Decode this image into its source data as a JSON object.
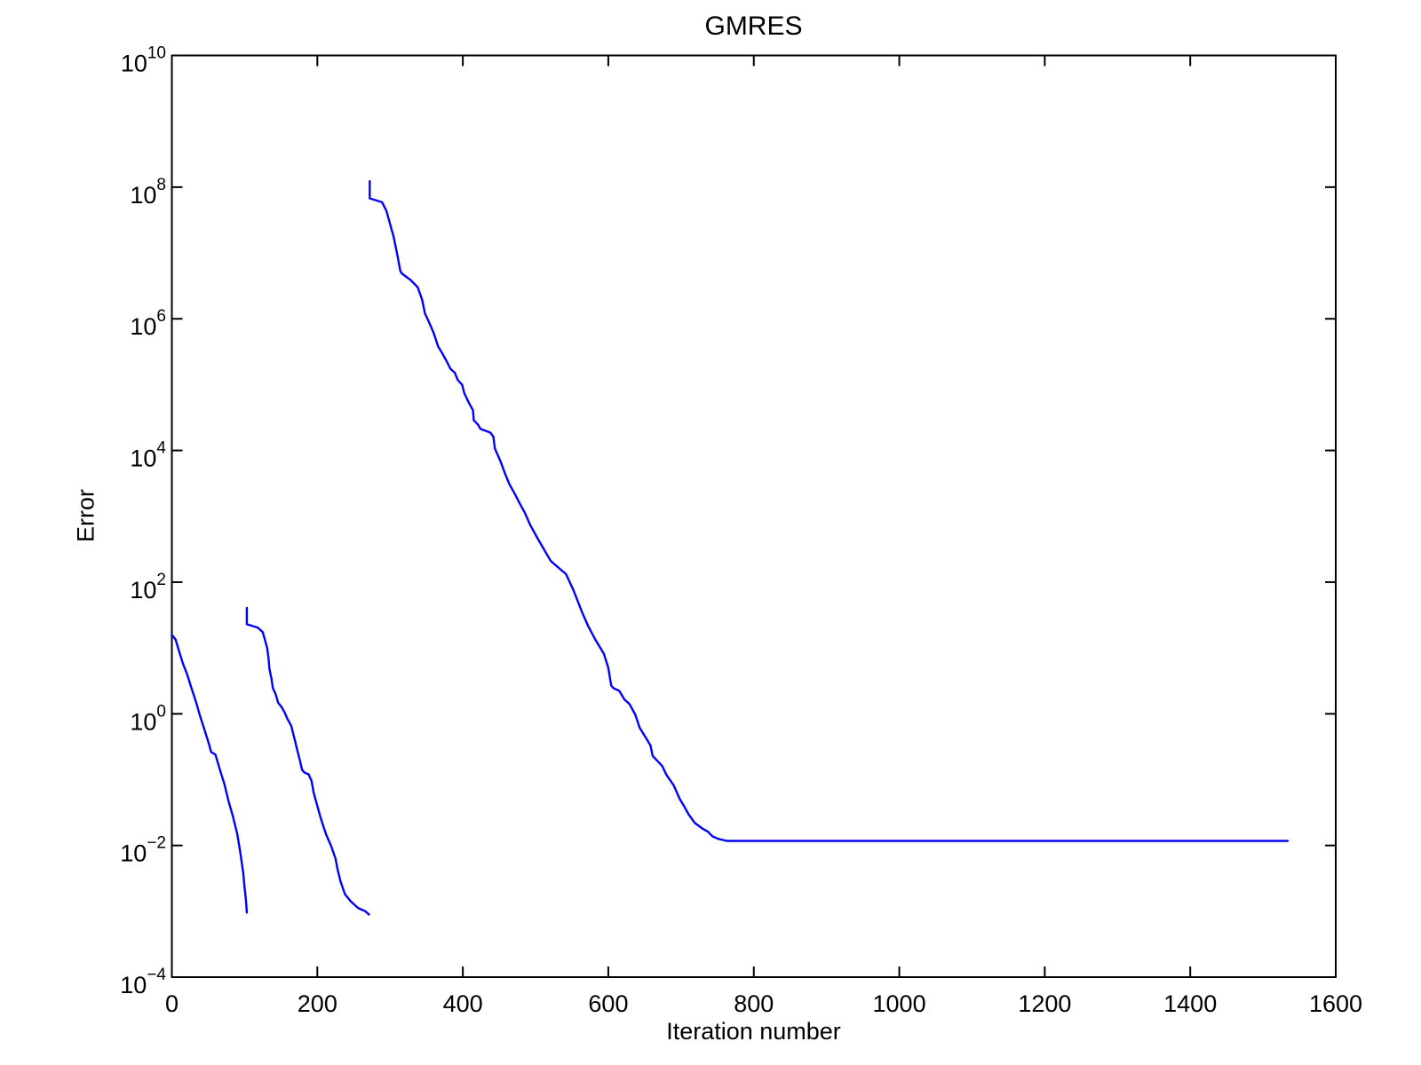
{
  "chart_data": {
    "type": "line",
    "title": "GMRES",
    "xlabel": "Iteration number",
    "ylabel": "Error",
    "x_ticks": [
      0,
      200,
      400,
      600,
      800,
      1000,
      1200,
      1400,
      1600
    ],
    "y_tick_exponents": [
      10,
      8,
      6,
      4,
      2,
      0,
      -2,
      -4
    ],
    "xlim": [
      0,
      1600
    ],
    "ylim_log10": [
      -4,
      10
    ],
    "y_scale": "log",
    "grid": false,
    "legend": null,
    "colors": {
      "line": "#0000ff",
      "axis": "#000000",
      "background": "#ffffff"
    },
    "series": [
      {
        "id": "segment-1",
        "points_iter_log10error": [
          [
            0,
            1.2
          ],
          [
            5,
            1.13
          ],
          [
            15,
            0.77
          ],
          [
            21,
            0.6
          ],
          [
            27,
            0.39
          ],
          [
            33,
            0.19
          ],
          [
            39,
            -0.04
          ],
          [
            45,
            -0.25
          ],
          [
            51,
            -0.46
          ],
          [
            54,
            -0.58
          ],
          [
            60,
            -0.62
          ],
          [
            66,
            -0.85
          ],
          [
            72,
            -1.06
          ],
          [
            78,
            -1.33
          ],
          [
            84,
            -1.56
          ],
          [
            90,
            -1.83
          ],
          [
            94,
            -2.1
          ],
          [
            98,
            -2.41
          ],
          [
            100,
            -2.64
          ],
          [
            102,
            -2.84
          ],
          [
            103,
            -3.02
          ]
        ]
      },
      {
        "id": "segment-2",
        "points_iter_log10error": [
          [
            103,
            1.61
          ],
          [
            103,
            1.36
          ],
          [
            118,
            1.31
          ],
          [
            125,
            1.24
          ],
          [
            131,
            1.0
          ],
          [
            133,
            0.84
          ],
          [
            134,
            0.69
          ],
          [
            137,
            0.53
          ],
          [
            139,
            0.39
          ],
          [
            143,
            0.29
          ],
          [
            146,
            0.17
          ],
          [
            151,
            0.1
          ],
          [
            155,
            0.02
          ],
          [
            159,
            -0.08
          ],
          [
            164,
            -0.18
          ],
          [
            167,
            -0.31
          ],
          [
            170,
            -0.44
          ],
          [
            173,
            -0.58
          ],
          [
            176,
            -0.71
          ],
          [
            179,
            -0.85
          ],
          [
            182,
            -0.89
          ],
          [
            188,
            -0.92
          ],
          [
            192,
            -1.02
          ],
          [
            195,
            -1.2
          ],
          [
            200,
            -1.4
          ],
          [
            204,
            -1.56
          ],
          [
            208,
            -1.7
          ],
          [
            212,
            -1.83
          ],
          [
            219,
            -2.01
          ],
          [
            225,
            -2.2
          ],
          [
            228,
            -2.37
          ],
          [
            232,
            -2.55
          ],
          [
            238,
            -2.74
          ],
          [
            246,
            -2.85
          ],
          [
            256,
            -2.95
          ],
          [
            266,
            -3.0
          ],
          [
            271,
            -3.05
          ]
        ]
      },
      {
        "id": "segment-3",
        "points_iter_log10error": [
          [
            272,
            8.09
          ],
          [
            272,
            7.83
          ],
          [
            289,
            7.77
          ],
          [
            295,
            7.64
          ],
          [
            305,
            7.24
          ],
          [
            310,
            6.97
          ],
          [
            314,
            6.73
          ],
          [
            316,
            6.69
          ],
          [
            328,
            6.59
          ],
          [
            338,
            6.48
          ],
          [
            344,
            6.29
          ],
          [
            348,
            6.08
          ],
          [
            354,
            5.94
          ],
          [
            360,
            5.78
          ],
          [
            366,
            5.58
          ],
          [
            371,
            5.49
          ],
          [
            378,
            5.35
          ],
          [
            383,
            5.24
          ],
          [
            389,
            5.18
          ],
          [
            393,
            5.07
          ],
          [
            399,
            5.0
          ],
          [
            402,
            4.87
          ],
          [
            408,
            4.73
          ],
          [
            414,
            4.61
          ],
          [
            415,
            4.46
          ],
          [
            421,
            4.39
          ],
          [
            424,
            4.33
          ],
          [
            438,
            4.27
          ],
          [
            442,
            4.21
          ],
          [
            444,
            4.03
          ],
          [
            452,
            3.83
          ],
          [
            458,
            3.65
          ],
          [
            464,
            3.49
          ],
          [
            472,
            3.33
          ],
          [
            478,
            3.2
          ],
          [
            485,
            3.06
          ],
          [
            493,
            2.86
          ],
          [
            503,
            2.66
          ],
          [
            521,
            2.32
          ],
          [
            542,
            2.12
          ],
          [
            552,
            1.88
          ],
          [
            564,
            1.54
          ],
          [
            572,
            1.34
          ],
          [
            582,
            1.13
          ],
          [
            594,
            0.91
          ],
          [
            600,
            0.7
          ],
          [
            604,
            0.43
          ],
          [
            607,
            0.39
          ],
          [
            615,
            0.35
          ],
          [
            622,
            0.22
          ],
          [
            629,
            0.15
          ],
          [
            637,
            -0.01
          ],
          [
            643,
            -0.21
          ],
          [
            652,
            -0.37
          ],
          [
            658,
            -0.48
          ],
          [
            661,
            -0.64
          ],
          [
            674,
            -0.79
          ],
          [
            680,
            -0.93
          ],
          [
            690,
            -1.09
          ],
          [
            698,
            -1.29
          ],
          [
            704,
            -1.4
          ],
          [
            710,
            -1.52
          ],
          [
            719,
            -1.66
          ],
          [
            729,
            -1.74
          ],
          [
            737,
            -1.79
          ],
          [
            743,
            -1.86
          ],
          [
            751,
            -1.9
          ],
          [
            763,
            -1.93
          ],
          [
            1534,
            -1.93
          ]
        ]
      }
    ]
  }
}
